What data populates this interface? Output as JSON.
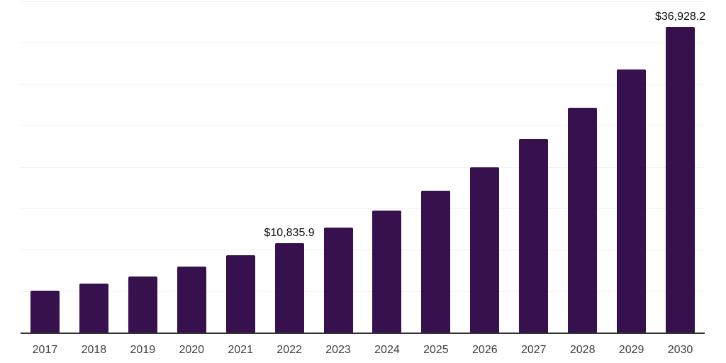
{
  "chart_data": {
    "type": "bar",
    "title": "",
    "xlabel": "",
    "ylabel": "",
    "categories": [
      "2017",
      "2018",
      "2019",
      "2020",
      "2021",
      "2022",
      "2023",
      "2024",
      "2025",
      "2026",
      "2027",
      "2028",
      "2029",
      "2030"
    ],
    "values": [
      5020,
      5880,
      6800,
      7940,
      9320,
      10835.9,
      12650,
      14710,
      17170,
      19990,
      23380,
      27190,
      31800,
      36928.2
    ],
    "value_labels": {
      "2022": "$10,835.9",
      "2030": "$36,928.2"
    },
    "ylim": [
      0,
      40000
    ],
    "grid_step": 5000,
    "grid": "horizontal",
    "legend_position": "none"
  },
  "colors": {
    "bar": "#37104E",
    "gridline": "#efefef",
    "axis_line": "#333333",
    "tick_label": "#404040",
    "data_label": "#0d0d0d",
    "background": "#ffffff"
  }
}
